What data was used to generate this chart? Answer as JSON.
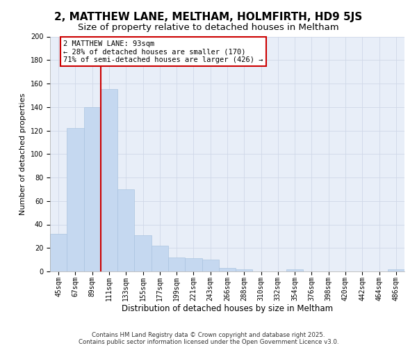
{
  "title": "2, MATTHEW LANE, MELTHAM, HOLMFIRTH, HD9 5JS",
  "subtitle": "Size of property relative to detached houses in Meltham",
  "xlabel": "Distribution of detached houses by size in Meltham",
  "ylabel": "Number of detached properties",
  "categories": [
    "45sqm",
    "67sqm",
    "89sqm",
    "111sqm",
    "133sqm",
    "155sqm",
    "177sqm",
    "199sqm",
    "221sqm",
    "243sqm",
    "266sqm",
    "288sqm",
    "310sqm",
    "332sqm",
    "354sqm",
    "376sqm",
    "398sqm",
    "420sqm",
    "442sqm",
    "464sqm",
    "486sqm"
  ],
  "values": [
    32,
    122,
    140,
    155,
    70,
    31,
    22,
    12,
    11,
    10,
    3,
    2,
    0,
    0,
    2,
    0,
    0,
    0,
    0,
    0,
    2
  ],
  "bar_color": "#c5d8f0",
  "bar_edge_color": "#aac4e0",
  "vline_x_index": 2.5,
  "vline_color": "#cc0000",
  "annotation_title": "2 MATTHEW LANE: 93sqm",
  "annotation_line1": "← 28% of detached houses are smaller (170)",
  "annotation_line2": "71% of semi-detached houses are larger (426) →",
  "annotation_box_color": "#cc0000",
  "ylim": [
    0,
    200
  ],
  "yticks": [
    0,
    20,
    40,
    60,
    80,
    100,
    120,
    140,
    160,
    180,
    200
  ],
  "background_color": "#ffffff",
  "plot_bg_color": "#e8eef8",
  "grid_color": "#d0d8e8",
  "footnote1": "Contains HM Land Registry data © Crown copyright and database right 2025.",
  "footnote2": "Contains public sector information licensed under the Open Government Licence v3.0.",
  "title_fontsize": 11,
  "subtitle_fontsize": 9.5,
  "xlabel_fontsize": 8.5,
  "ylabel_fontsize": 8,
  "tick_fontsize": 7,
  "annotation_fontsize": 7.5,
  "footnote_fontsize": 6.2
}
